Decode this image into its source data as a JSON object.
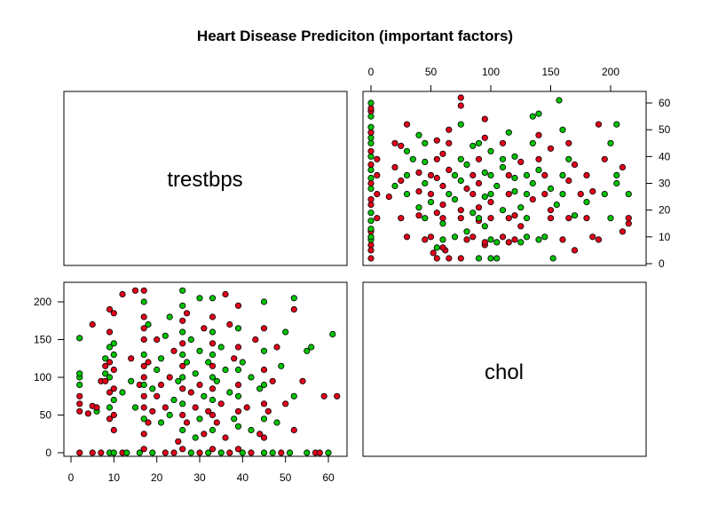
{
  "chart_data": {
    "type": "scatter",
    "title": "Heart Disease Prediciton (important factors)",
    "variables": [
      "trestbps",
      "chol"
    ],
    "trestbps_ticks": [
      0,
      10,
      20,
      30,
      40,
      50,
      60
    ],
    "chol_ticks": [
      0,
      50,
      100,
      150,
      200
    ],
    "trestbps_range": [
      0,
      62
    ],
    "chol_range": [
      0,
      216
    ],
    "point_colors": {
      "class_a": "#e3001b",
      "class_b": "#00c100"
    },
    "grid": false,
    "legend": "none",
    "points": [
      [
        2,
        0,
        "a"
      ],
      [
        2,
        55,
        "a"
      ],
      [
        2,
        65,
        "a"
      ],
      [
        2,
        75,
        "a"
      ],
      [
        2,
        90,
        "b"
      ],
      [
        2,
        100,
        "b"
      ],
      [
        2,
        105,
        "b"
      ],
      [
        2,
        152,
        "b"
      ],
      [
        4,
        52,
        "a"
      ],
      [
        5,
        0,
        "a"
      ],
      [
        5,
        62,
        "a"
      ],
      [
        5,
        170,
        "a"
      ],
      [
        6,
        55,
        "b"
      ],
      [
        6,
        60,
        "a"
      ],
      [
        7,
        0,
        "a"
      ],
      [
        7,
        95,
        "a"
      ],
      [
        8,
        95,
        "a"
      ],
      [
        8,
        105,
        "b"
      ],
      [
        8,
        115,
        "a"
      ],
      [
        8,
        125,
        "b"
      ],
      [
        9,
        0,
        "b"
      ],
      [
        9,
        45,
        "a"
      ],
      [
        9,
        60,
        "b"
      ],
      [
        9,
        80,
        "a"
      ],
      [
        9,
        100,
        "b"
      ],
      [
        9,
        120,
        "a"
      ],
      [
        9,
        140,
        "b"
      ],
      [
        9,
        160,
        "a"
      ],
      [
        9,
        190,
        "a"
      ],
      [
        10,
        0,
        "b"
      ],
      [
        10,
        30,
        "a"
      ],
      [
        10,
        50,
        "a"
      ],
      [
        10,
        70,
        "b"
      ],
      [
        10,
        85,
        "a"
      ],
      [
        10,
        110,
        "a"
      ],
      [
        10,
        130,
        "b"
      ],
      [
        10,
        145,
        "b"
      ],
      [
        10,
        185,
        "a"
      ],
      [
        12,
        0,
        "a"
      ],
      [
        12,
        80,
        "b"
      ],
      [
        12,
        210,
        "a"
      ],
      [
        13,
        0,
        "b"
      ],
      [
        14,
        95,
        "b"
      ],
      [
        14,
        125,
        "a"
      ],
      [
        15,
        215,
        "a"
      ],
      [
        15,
        60,
        "b"
      ],
      [
        16,
        0,
        "b"
      ],
      [
        16,
        90,
        "a"
      ],
      [
        17,
        5,
        "a"
      ],
      [
        17,
        25,
        "a"
      ],
      [
        17,
        45,
        "b"
      ],
      [
        17,
        60,
        "a"
      ],
      [
        17,
        75,
        "a"
      ],
      [
        17,
        90,
        "b"
      ],
      [
        17,
        100,
        "a"
      ],
      [
        17,
        115,
        "a"
      ],
      [
        17,
        130,
        "b"
      ],
      [
        17,
        150,
        "a"
      ],
      [
        17,
        165,
        "a"
      ],
      [
        17,
        180,
        "a"
      ],
      [
        17,
        200,
        "b"
      ],
      [
        17,
        215,
        "a"
      ],
      [
        18,
        40,
        "a"
      ],
      [
        18,
        120,
        "a"
      ],
      [
        18,
        170,
        "b"
      ],
      [
        19,
        0,
        "b"
      ],
      [
        19,
        55,
        "a"
      ],
      [
        19,
        85,
        "b"
      ],
      [
        20,
        75,
        "a"
      ],
      [
        20,
        110,
        "b"
      ],
      [
        20,
        150,
        "a"
      ],
      [
        21,
        40,
        "b"
      ],
      [
        21,
        90,
        "a"
      ],
      [
        21,
        125,
        "b"
      ],
      [
        22,
        0,
        "a"
      ],
      [
        22,
        60,
        "a"
      ],
      [
        22,
        155,
        "b"
      ],
      [
        23,
        50,
        "b"
      ],
      [
        23,
        100,
        "a"
      ],
      [
        23,
        180,
        "b"
      ],
      [
        24,
        0,
        "a"
      ],
      [
        24,
        70,
        "b"
      ],
      [
        24,
        135,
        "a"
      ],
      [
        25,
        15,
        "a"
      ],
      [
        25,
        95,
        "b"
      ],
      [
        26,
        5,
        "a"
      ],
      [
        26,
        30,
        "b"
      ],
      [
        26,
        50,
        "a"
      ],
      [
        26,
        65,
        "b"
      ],
      [
        26,
        85,
        "a"
      ],
      [
        26,
        100,
        "b"
      ],
      [
        26,
        115,
        "a"
      ],
      [
        26,
        130,
        "b"
      ],
      [
        26,
        145,
        "a"
      ],
      [
        26,
        160,
        "b"
      ],
      [
        26,
        175,
        "a"
      ],
      [
        26,
        195,
        "b"
      ],
      [
        26,
        215,
        "b"
      ],
      [
        27,
        40,
        "a"
      ],
      [
        27,
        120,
        "b"
      ],
      [
        27,
        185,
        "a"
      ],
      [
        28,
        0,
        "b"
      ],
      [
        28,
        80,
        "a"
      ],
      [
        28,
        150,
        "b"
      ],
      [
        29,
        20,
        "b"
      ],
      [
        29,
        60,
        "a"
      ],
      [
        29,
        105,
        "b"
      ],
      [
        30,
        0,
        "a"
      ],
      [
        30,
        45,
        "b"
      ],
      [
        30,
        90,
        "a"
      ],
      [
        30,
        135,
        "b"
      ],
      [
        30,
        205,
        "b"
      ],
      [
        31,
        25,
        "a"
      ],
      [
        31,
        75,
        "b"
      ],
      [
        31,
        165,
        "a"
      ],
      [
        32,
        0,
        "b"
      ],
      [
        32,
        55,
        "a"
      ],
      [
        32,
        120,
        "b"
      ],
      [
        33,
        5,
        "a"
      ],
      [
        33,
        30,
        "b"
      ],
      [
        33,
        50,
        "a"
      ],
      [
        33,
        70,
        "b"
      ],
      [
        33,
        85,
        "a"
      ],
      [
        33,
        100,
        "b"
      ],
      [
        33,
        115,
        "a"
      ],
      [
        33,
        130,
        "b"
      ],
      [
        33,
        145,
        "a"
      ],
      [
        33,
        160,
        "b"
      ],
      [
        33,
        180,
        "a"
      ],
      [
        33,
        205,
        "b"
      ],
      [
        34,
        40,
        "a"
      ],
      [
        34,
        95,
        "b"
      ],
      [
        35,
        0,
        "b"
      ],
      [
        35,
        65,
        "a"
      ],
      [
        35,
        140,
        "b"
      ],
      [
        36,
        20,
        "a"
      ],
      [
        36,
        110,
        "b"
      ],
      [
        36,
        210,
        "a"
      ],
      [
        37,
        0,
        "a"
      ],
      [
        37,
        80,
        "b"
      ],
      [
        37,
        170,
        "a"
      ],
      [
        38,
        45,
        "b"
      ],
      [
        38,
        125,
        "a"
      ],
      [
        39,
        5,
        "a"
      ],
      [
        39,
        35,
        "b"
      ],
      [
        39,
        55,
        "a"
      ],
      [
        39,
        75,
        "b"
      ],
      [
        39,
        90,
        "a"
      ],
      [
        39,
        110,
        "b"
      ],
      [
        39,
        140,
        "a"
      ],
      [
        39,
        165,
        "b"
      ],
      [
        39,
        195,
        "a"
      ],
      [
        40,
        0,
        "b"
      ],
      [
        40,
        120,
        "b"
      ],
      [
        41,
        60,
        "a"
      ],
      [
        42,
        0,
        "a"
      ],
      [
        42,
        30,
        "b"
      ],
      [
        42,
        100,
        "b"
      ],
      [
        43,
        150,
        "a"
      ],
      [
        44,
        25,
        "a"
      ],
      [
        44,
        85,
        "b"
      ],
      [
        45,
        0,
        "b"
      ],
      [
        45,
        20,
        "a"
      ],
      [
        45,
        45,
        "b"
      ],
      [
        45,
        65,
        "a"
      ],
      [
        45,
        90,
        "b"
      ],
      [
        45,
        110,
        "a"
      ],
      [
        45,
        135,
        "b"
      ],
      [
        45,
        165,
        "a"
      ],
      [
        45,
        200,
        "b"
      ],
      [
        46,
        55,
        "a"
      ],
      [
        47,
        0,
        "b"
      ],
      [
        47,
        95,
        "a"
      ],
      [
        48,
        40,
        "b"
      ],
      [
        48,
        140,
        "a"
      ],
      [
        49,
        0,
        "a"
      ],
      [
        49,
        115,
        "b"
      ],
      [
        50,
        65,
        "a"
      ],
      [
        50,
        160,
        "b"
      ],
      [
        51,
        0,
        "b"
      ],
      [
        52,
        30,
        "a"
      ],
      [
        52,
        75,
        "b"
      ],
      [
        52,
        190,
        "a"
      ],
      [
        52,
        205,
        "b"
      ],
      [
        54,
        95,
        "a"
      ],
      [
        55,
        0,
        "b"
      ],
      [
        55,
        135,
        "b"
      ],
      [
        56,
        140,
        "b"
      ],
      [
        57,
        0,
        "a"
      ],
      [
        58,
        0,
        "a"
      ],
      [
        59,
        75,
        "a"
      ],
      [
        60,
        0,
        "b"
      ],
      [
        61,
        157,
        "b"
      ],
      [
        62,
        75,
        "a"
      ]
    ]
  }
}
